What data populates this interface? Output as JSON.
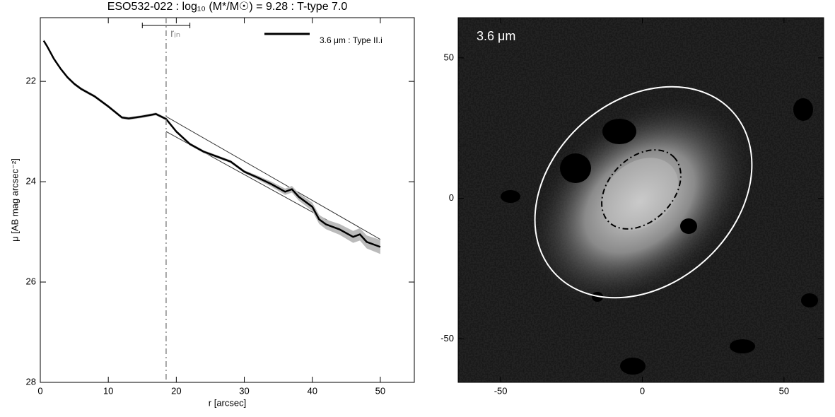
{
  "chart_data": [
    {
      "type": "line",
      "title": "ESO532-022 : log₁₀ (M*/M☉) = 9.28 : T-type 7.0",
      "x_label": "r [arcsec]",
      "y_label": "μ [AB mag arcsec⁻²]",
      "xlim": [
        0,
        55
      ],
      "ylim": [
        28,
        20.73
      ],
      "y_inverted": true,
      "xticks": [
        0,
        10,
        20,
        30,
        40,
        50
      ],
      "yticks": [
        22,
        24,
        26,
        28
      ],
      "series": [
        {
          "name": "3.6 μm : Type II.i",
          "color": "#000000",
          "x": [
            0.5,
            1,
            2,
            3,
            4,
            5,
            6,
            8,
            10,
            12,
            13,
            15,
            17,
            18.5,
            20,
            22,
            24,
            26,
            28,
            30,
            32,
            34,
            36,
            37,
            38,
            40,
            41,
            42,
            44,
            46,
            47,
            48,
            50
          ],
          "values": [
            21.19,
            21.3,
            21.55,
            21.75,
            21.92,
            22.05,
            22.15,
            22.3,
            22.5,
            22.72,
            22.74,
            22.7,
            22.65,
            22.75,
            23.0,
            23.25,
            23.4,
            23.5,
            23.6,
            23.8,
            23.92,
            24.05,
            24.2,
            24.15,
            24.3,
            24.5,
            24.75,
            24.85,
            24.95,
            25.1,
            25.05,
            25.2,
            25.3
          ]
        }
      ],
      "fit_lines": [
        {
          "x": [
            18.5,
            50
          ],
          "values": [
            22.7,
            25.15
          ]
        },
        {
          "x": [
            18.5,
            50
          ],
          "values": [
            23.0,
            25.35
          ]
        }
      ],
      "marker": {
        "label": "rᵢₙ",
        "x": 18.5,
        "range": [
          15,
          22
        ]
      },
      "legend": "upper right"
    },
    {
      "type": "image",
      "label": "3.6 μm",
      "xlim": [
        -65,
        64
      ],
      "ylim": [
        -65.5,
        64.3
      ],
      "xticks": [
        -50,
        0,
        50
      ],
      "yticks": [
        -50,
        0,
        50
      ]
    }
  ]
}
